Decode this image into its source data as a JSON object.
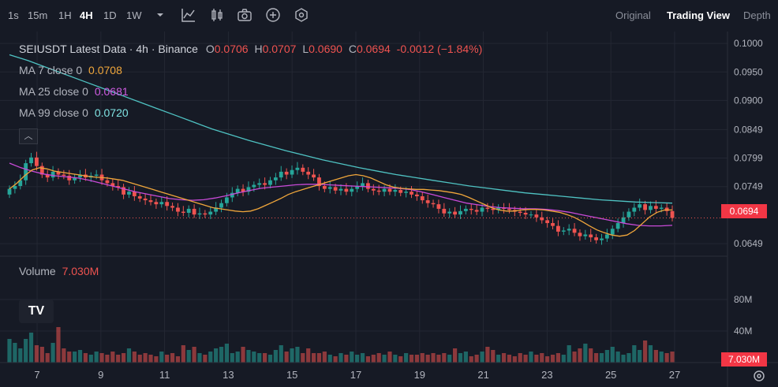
{
  "toolbar": {
    "timeframes": [
      "1s",
      "15m",
      "1H",
      "4H",
      "1D",
      "1W"
    ],
    "active_timeframe": "4H",
    "views": [
      "Original",
      "Trading View",
      "Depth"
    ],
    "active_view": "Trading View"
  },
  "legend": {
    "symbol": "SEIUSDT Latest Data · 4h · Binance",
    "o_label": "O",
    "o_value": "0.0706",
    "h_label": "H",
    "h_value": "0.0707",
    "l_label": "L",
    "l_value": "0.0690",
    "c_label": "C",
    "c_value": "0.0694",
    "change": "-0.0012 (−1.84%)",
    "ma7_label": "MA 7 close 0",
    "ma7_value": "0.0708",
    "ma25_label": "MA 25 close 0",
    "ma25_value": "0.0681",
    "ma99_label": "MA 99 close 0",
    "ma99_value": "0.0720",
    "volume_label": "Volume",
    "volume_value": "7.030M"
  },
  "price_axis": [
    "0.1000",
    "0.0950",
    "0.0900",
    "0.0849",
    "0.0799",
    "0.0749",
    "0.0649"
  ],
  "current_price": "0.0694",
  "volume_axis": [
    "80M",
    "40M"
  ],
  "current_volume": "7.030M",
  "x_axis": [
    "7",
    "9",
    "11",
    "13",
    "15",
    "17",
    "19",
    "21",
    "23",
    "25",
    "27"
  ],
  "colors": {
    "up": "#26a69a",
    "down": "#ef5350",
    "ma7": "#f0a63b",
    "ma25": "#c94ad8",
    "ma99": "#4fc3c3"
  },
  "chart_data": {
    "type": "candlestick",
    "ylim": [
      0.0627,
      0.1007
    ],
    "volume_ylim": [
      0,
      120
    ],
    "candles_close": [
      0.0745,
      0.075,
      0.076,
      0.079,
      0.08,
      0.0785,
      0.077,
      0.0765,
      0.0775,
      0.077,
      0.0768,
      0.076,
      0.0765,
      0.077,
      0.0765,
      0.0768,
      0.077,
      0.076,
      0.0755,
      0.075,
      0.0748,
      0.0735,
      0.074,
      0.0732,
      0.0728,
      0.0725,
      0.0722,
      0.0718,
      0.0722,
      0.0715,
      0.0712,
      0.0705,
      0.0703,
      0.071,
      0.07,
      0.0702,
      0.07,
      0.0705,
      0.0712,
      0.072,
      0.073,
      0.0738,
      0.0745,
      0.074,
      0.0748,
      0.0752,
      0.0755,
      0.0752,
      0.076,
      0.0765,
      0.0775,
      0.077,
      0.0778,
      0.0782,
      0.0775,
      0.077,
      0.0765,
      0.075,
      0.0745,
      0.0748,
      0.0742,
      0.0745,
      0.074,
      0.0745,
      0.075,
      0.0755,
      0.0745,
      0.0742,
      0.074,
      0.0745,
      0.074,
      0.0743,
      0.0738,
      0.074,
      0.0735,
      0.0732,
      0.0725,
      0.072,
      0.0718,
      0.071,
      0.0702,
      0.0705,
      0.07,
      0.0706,
      0.071,
      0.0708,
      0.0705,
      0.0712,
      0.071,
      0.0708,
      0.0712,
      0.071,
      0.0708,
      0.0705,
      0.0703,
      0.07,
      0.07,
      0.0695,
      0.069,
      0.0685,
      0.068,
      0.067,
      0.0672,
      0.0675,
      0.0668,
      0.0662,
      0.0665,
      0.066,
      0.0655,
      0.0658,
      0.0665,
      0.0675,
      0.0685,
      0.0695,
      0.0705,
      0.0712,
      0.0718,
      0.0708,
      0.0715,
      0.071,
      0.0712,
      0.0706,
      0.0694
    ],
    "volumes": [
      30,
      25,
      18,
      30,
      38,
      22,
      20,
      12,
      25,
      45,
      18,
      14,
      14,
      16,
      12,
      10,
      14,
      12,
      10,
      14,
      10,
      12,
      18,
      14,
      10,
      12,
      10,
      8,
      14,
      10,
      12,
      8,
      22,
      16,
      20,
      12,
      10,
      14,
      18,
      20,
      24,
      12,
      14,
      20,
      16,
      14,
      12,
      12,
      10,
      16,
      22,
      14,
      18,
      20,
      12,
      18,
      12,
      12,
      14,
      10,
      8,
      12,
      10,
      14,
      10,
      12,
      8,
      10,
      12,
      10,
      14,
      10,
      8,
      12,
      10,
      10,
      12,
      10,
      12,
      10,
      12,
      10,
      18,
      12,
      14,
      8,
      10,
      14,
      20,
      16,
      10,
      12,
      10,
      8,
      12,
      10,
      14,
      10,
      12,
      8,
      10,
      12,
      10,
      22,
      14,
      18,
      24,
      18,
      12,
      12,
      16,
      20,
      14,
      10,
      12,
      22,
      16,
      28,
      22,
      16,
      14,
      12,
      14,
      10,
      8
    ],
    "ma7": [
      0.0745,
      0.0755,
      0.0768,
      0.0778,
      0.0782,
      0.078,
      0.0776,
      0.0774,
      0.0772,
      0.077,
      0.0768,
      0.0766,
      0.0765,
      0.0764,
      0.0762,
      0.076,
      0.0756,
      0.0752,
      0.0748,
      0.0744,
      0.074,
      0.0736,
      0.0732,
      0.0728,
      0.0724,
      0.072,
      0.0716,
      0.0712,
      0.071,
      0.0708,
      0.0706,
      0.0705,
      0.0706,
      0.071,
      0.0716,
      0.0722,
      0.0728,
      0.0735,
      0.074,
      0.0744,
      0.0748,
      0.0752,
      0.0756,
      0.076,
      0.0764,
      0.0768,
      0.077,
      0.0768,
      0.0764,
      0.0758,
      0.0752,
      0.0748,
      0.0746,
      0.0745,
      0.0744,
      0.0744,
      0.0743,
      0.0742,
      0.074,
      0.0738,
      0.0735,
      0.073,
      0.0724,
      0.0718,
      0.0712,
      0.0708,
      0.0706,
      0.0706,
      0.0708,
      0.0709,
      0.0709,
      0.0708,
      0.0706,
      0.0704,
      0.07,
      0.0695,
      0.0688,
      0.068,
      0.0673,
      0.0668,
      0.0664,
      0.0662,
      0.0664,
      0.0672,
      0.0684,
      0.0696,
      0.0704,
      0.0708,
      0.0708
    ],
    "ma25": [
      0.079,
      0.0782,
      0.0776,
      0.0771,
      0.0768,
      0.0766,
      0.0764,
      0.076,
      0.0755,
      0.075,
      0.0745,
      0.074,
      0.0736,
      0.0732,
      0.0728,
      0.0726,
      0.0725,
      0.0726,
      0.0729,
      0.0733,
      0.0738,
      0.0742,
      0.0746,
      0.0748,
      0.075,
      0.0752,
      0.0753,
      0.0753,
      0.0752,
      0.0751,
      0.075,
      0.0749,
      0.0748,
      0.0747,
      0.0746,
      0.0744,
      0.074,
      0.0735,
      0.073,
      0.0725,
      0.072,
      0.0717,
      0.0714,
      0.0712,
      0.0711,
      0.071,
      0.071,
      0.0709,
      0.0707,
      0.0704,
      0.07,
      0.0696,
      0.0692,
      0.0688,
      0.0684,
      0.0681,
      0.068,
      0.068,
      0.0681
    ],
    "ma99": [
      0.098,
      0.097,
      0.0958,
      0.0946,
      0.0934,
      0.0922,
      0.091,
      0.0898,
      0.0886,
      0.0874,
      0.0862,
      0.085,
      0.084,
      0.083,
      0.0821,
      0.0812,
      0.0804,
      0.0796,
      0.0789,
      0.0782,
      0.0776,
      0.077,
      0.0765,
      0.076,
      0.0755,
      0.075,
      0.0746,
      0.0742,
      0.0738,
      0.0735,
      0.0732,
      0.0729,
      0.0726,
      0.0724,
      0.0722,
      0.0721,
      0.072
    ]
  }
}
